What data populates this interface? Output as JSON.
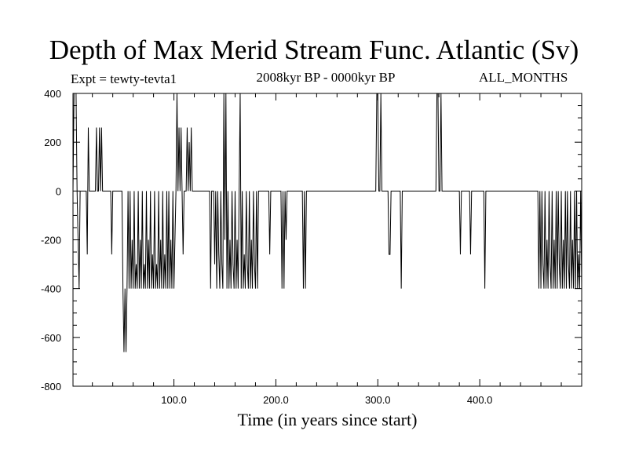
{
  "header": {
    "title": "Depth of Max Merid Stream Func. Atlantic (Sv)",
    "experiment": "Expt = tewty-tevta1",
    "period": "2008kyr BP - 0000kyr BP",
    "months": "ALL_MONTHS"
  },
  "chart_data": {
    "type": "line",
    "title": "Depth of Max Merid Stream Func. Atlantic (Sv)",
    "xlabel": "Time (in years since start)",
    "ylabel": "",
    "xlim": [
      1,
      500
    ],
    "ylim": [
      -800,
      400
    ],
    "x_ticks": [
      {
        "value": 100,
        "label": "100.0"
      },
      {
        "value": 200,
        "label": "200.0"
      },
      {
        "value": 300,
        "label": "300.0"
      },
      {
        "value": 400,
        "label": "400.0"
      }
    ],
    "y_ticks": [
      {
        "value": 400,
        "label": "400"
      },
      {
        "value": 200,
        "label": "200"
      },
      {
        "value": 0,
        "label": "0"
      },
      {
        "value": -200,
        "label": "-200"
      },
      {
        "value": -400,
        "label": "-400"
      },
      {
        "value": -600,
        "label": "-600"
      },
      {
        "value": -800,
        "label": "-800"
      }
    ],
    "grid": false,
    "series": [
      {
        "color": "#000000",
        "points": [
          [
            1,
            0
          ],
          [
            2,
            400
          ],
          [
            4,
            400
          ],
          [
            5,
            0
          ],
          [
            6,
            -200
          ],
          [
            7,
            -400
          ],
          [
            8,
            0
          ],
          [
            14,
            0
          ],
          [
            15,
            -260
          ],
          [
            16,
            260
          ],
          [
            17,
            0
          ],
          [
            23,
            0
          ],
          [
            24,
            260
          ],
          [
            25,
            0
          ],
          [
            26,
            0
          ],
          [
            27,
            260
          ],
          [
            28,
            0
          ],
          [
            29,
            260
          ],
          [
            30,
            0
          ],
          [
            38,
            0
          ],
          [
            39,
            -260
          ],
          [
            40,
            0
          ],
          [
            49,
            0
          ],
          [
            50,
            -400
          ],
          [
            51,
            -660
          ],
          [
            52,
            -400
          ],
          [
            53,
            -660
          ],
          [
            54,
            -400
          ],
          [
            55,
            0
          ],
          [
            56,
            -400
          ],
          [
            57,
            0
          ],
          [
            58,
            -400
          ],
          [
            59,
            -200
          ],
          [
            60,
            -400
          ],
          [
            61,
            0
          ],
          [
            62,
            -400
          ],
          [
            63,
            -300
          ],
          [
            64,
            -400
          ],
          [
            65,
            0
          ],
          [
            66,
            -400
          ],
          [
            67,
            -200
          ],
          [
            68,
            -400
          ],
          [
            69,
            0
          ],
          [
            70,
            -400
          ],
          [
            71,
            -300
          ],
          [
            72,
            -400
          ],
          [
            73,
            0
          ],
          [
            74,
            -400
          ],
          [
            75,
            -200
          ],
          [
            76,
            -400
          ],
          [
            77,
            0
          ],
          [
            78,
            -400
          ],
          [
            79,
            -260
          ],
          [
            80,
            -400
          ],
          [
            81,
            0
          ],
          [
            82,
            -400
          ],
          [
            83,
            -300
          ],
          [
            84,
            -400
          ],
          [
            85,
            0
          ],
          [
            86,
            -400
          ],
          [
            87,
            -200
          ],
          [
            88,
            -400
          ],
          [
            89,
            0
          ],
          [
            90,
            -400
          ],
          [
            91,
            -260
          ],
          [
            92,
            -400
          ],
          [
            93,
            0
          ],
          [
            94,
            -400
          ],
          [
            95,
            0
          ],
          [
            96,
            -400
          ],
          [
            97,
            -200
          ],
          [
            98,
            -400
          ],
          [
            99,
            0
          ],
          [
            100,
            -400
          ],
          [
            101,
            -200
          ],
          [
            102,
            0
          ],
          [
            103,
            400
          ],
          [
            104,
            0
          ],
          [
            105,
            260
          ],
          [
            106,
            0
          ],
          [
            107,
            260
          ],
          [
            108,
            0
          ],
          [
            109,
            -260
          ],
          [
            110,
            0
          ],
          [
            112,
            0
          ],
          [
            113,
            260
          ],
          [
            114,
            0
          ],
          [
            115,
            200
          ],
          [
            116,
            0
          ],
          [
            117,
            260
          ],
          [
            118,
            0
          ],
          [
            135,
            0
          ],
          [
            136,
            -400
          ],
          [
            137,
            0
          ],
          [
            139,
            0
          ],
          [
            140,
            -300
          ],
          [
            141,
            0
          ],
          [
            142,
            -400
          ],
          [
            143,
            0
          ],
          [
            144,
            -260
          ],
          [
            145,
            -400
          ],
          [
            146,
            0
          ],
          [
            147,
            -300
          ],
          [
            148,
            -400
          ],
          [
            149,
            400
          ],
          [
            150,
            -200
          ],
          [
            151,
            400
          ],
          [
            152,
            -400
          ],
          [
            153,
            0
          ],
          [
            154,
            -400
          ],
          [
            155,
            -200
          ],
          [
            156,
            -400
          ],
          [
            157,
            0
          ],
          [
            158,
            -300
          ],
          [
            159,
            -400
          ],
          [
            160,
            0
          ],
          [
            161,
            -400
          ],
          [
            162,
            -200
          ],
          [
            163,
            -400
          ],
          [
            164,
            0
          ],
          [
            165,
            400
          ],
          [
            166,
            -400
          ],
          [
            167,
            0
          ],
          [
            168,
            -400
          ],
          [
            169,
            -260
          ],
          [
            170,
            -400
          ],
          [
            171,
            0
          ],
          [
            172,
            -300
          ],
          [
            173,
            -400
          ],
          [
            174,
            0
          ],
          [
            175,
            -400
          ],
          [
            176,
            -200
          ],
          [
            177,
            -400
          ],
          [
            178,
            0
          ],
          [
            179,
            -300
          ],
          [
            180,
            -400
          ],
          [
            181,
            0
          ],
          [
            182,
            -400
          ],
          [
            183,
            0
          ],
          [
            193,
            0
          ],
          [
            194,
            -260
          ],
          [
            195,
            0
          ],
          [
            205,
            0
          ],
          [
            206,
            -400
          ],
          [
            207,
            0
          ],
          [
            208,
            -400
          ],
          [
            209,
            0
          ],
          [
            210,
            -200
          ],
          [
            211,
            0
          ],
          [
            226,
            0
          ],
          [
            227,
            -400
          ],
          [
            228,
            0
          ],
          [
            229,
            -400
          ],
          [
            230,
            0
          ],
          [
            298,
            0
          ],
          [
            299,
            400
          ],
          [
            300,
            400
          ],
          [
            301,
            0
          ],
          [
            302,
            0
          ],
          [
            303,
            400
          ],
          [
            304,
            0
          ],
          [
            310,
            0
          ],
          [
            311,
            -260
          ],
          [
            312,
            -260
          ],
          [
            313,
            0
          ],
          [
            322,
            0
          ],
          [
            323,
            -400
          ],
          [
            324,
            0
          ],
          [
            357,
            0
          ],
          [
            358,
            400
          ],
          [
            359,
            400
          ],
          [
            360,
            0
          ],
          [
            361,
            0
          ],
          [
            362,
            400
          ],
          [
            363,
            0
          ],
          [
            380,
            0
          ],
          [
            381,
            -260
          ],
          [
            382,
            0
          ],
          [
            390,
            0
          ],
          [
            391,
            -260
          ],
          [
            392,
            0
          ],
          [
            404,
            0
          ],
          [
            405,
            -400
          ],
          [
            406,
            0
          ],
          [
            457,
            0
          ],
          [
            458,
            -400
          ],
          [
            459,
            0
          ],
          [
            460,
            -400
          ],
          [
            461,
            0
          ],
          [
            462,
            -300
          ],
          [
            463,
            -400
          ],
          [
            464,
            0
          ],
          [
            465,
            -400
          ],
          [
            466,
            -200
          ],
          [
            467,
            -400
          ],
          [
            468,
            0
          ],
          [
            469,
            -300
          ],
          [
            470,
            -400
          ],
          [
            471,
            0
          ],
          [
            472,
            -400
          ],
          [
            473,
            -200
          ],
          [
            474,
            -400
          ],
          [
            475,
            0
          ],
          [
            476,
            -400
          ],
          [
            477,
            0
          ],
          [
            478,
            -300
          ],
          [
            479,
            -400
          ],
          [
            480,
            0
          ],
          [
            481,
            -400
          ],
          [
            482,
            -200
          ],
          [
            483,
            -400
          ],
          [
            484,
            0
          ],
          [
            485,
            -400
          ],
          [
            486,
            0
          ],
          [
            487,
            -300
          ],
          [
            488,
            -400
          ],
          [
            489,
            0
          ],
          [
            490,
            -400
          ],
          [
            491,
            -200
          ],
          [
            492,
            -400
          ],
          [
            493,
            0
          ],
          [
            494,
            -400
          ],
          [
            495,
            0
          ],
          [
            496,
            -400
          ],
          [
            497,
            -260
          ],
          [
            498,
            -400
          ],
          [
            499,
            0
          ],
          [
            500,
            -400
          ]
        ]
      }
    ]
  }
}
